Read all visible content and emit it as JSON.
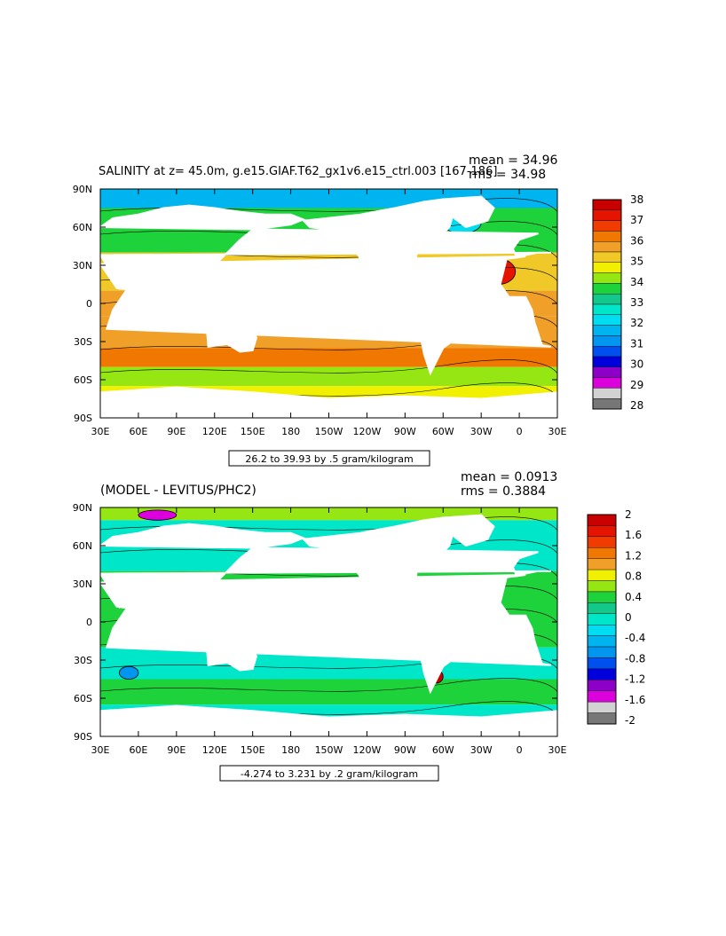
{
  "panels": [
    {
      "title": "SALINITY at z=  45.0m, g.e15.GIAF.T62_gx1v6.e15_ctrl.003 [167-186]",
      "stats": {
        "mean": "mean = 34.96",
        "rms": "rms = 34.98"
      },
      "range_label": "26.2 to 39.93 by .5 gram/kilogram",
      "colorbar": {
        "labels": [
          "38",
          "37",
          "36",
          "35",
          "34",
          "33",
          "32",
          "31",
          "30",
          "29",
          "28"
        ],
        "colors": [
          "#c80000",
          "#e41400",
          "#f03c00",
          "#f07800",
          "#f0a028",
          "#f0c828",
          "#f0f000",
          "#96e614",
          "#1ed23c",
          "#14c88c",
          "#00e6c8",
          "#00dcf0",
          "#00b4f0",
          "#0096f0",
          "#0050f0",
          "#0000dc",
          "#8c00c8",
          "#dc00dc",
          "#d2d2d2",
          "#777777"
        ]
      },
      "zones": [
        {
          "lat": [
            75,
            90
          ],
          "color": "#00b4f0"
        },
        {
          "lat": [
            40,
            75
          ],
          "color": "#1ed23c"
        },
        {
          "lat": [
            10,
            40
          ],
          "color": "#f0c828"
        },
        {
          "lat": [
            -10,
            10
          ],
          "color": "#f0a028"
        },
        {
          "lat": [
            -35,
            -10
          ],
          "color": "#f0a028"
        },
        {
          "lat": [
            -50,
            -35
          ],
          "color": "#f07800"
        },
        {
          "lat": [
            -65,
            -50
          ],
          "color": "#96e614"
        },
        {
          "lat": [
            -80,
            -65
          ],
          "color": "#f0f000"
        }
      ],
      "patches": [
        {
          "lon": [
            330,
            357
          ],
          "lat": [
            15,
            35
          ],
          "color": "#e41400"
        },
        {
          "lon": [
            315,
            340
          ],
          "lat": [
            -30,
            -5
          ],
          "color": "#e41400"
        },
        {
          "lon": [
            215,
            255
          ],
          "lat": [
            -25,
            -12
          ],
          "color": "#f03c00"
        },
        {
          "lon": [
            165,
            215
          ],
          "lat": [
            18,
            30
          ],
          "color": "#f07800"
        },
        {
          "lon": [
            55,
            70
          ],
          "lat": [
            15,
            25
          ],
          "color": "#f07800"
        },
        {
          "lon": [
            300,
            330
          ],
          "lat": [
            55,
            72
          ],
          "color": "#00dcf0"
        }
      ]
    },
    {
      "title": "(MODEL - LEVITUS/PHC2)",
      "stats": {
        "mean": "mean = 0.0913",
        "rms": "rms = 0.3884"
      },
      "range_label": "-4.274 to 3.231 by .2 gram/kilogram",
      "colorbar": {
        "labels": [
          "2",
          "1.6",
          "1.2",
          "0.8",
          "0.4",
          "0",
          "-0.4",
          "-0.8",
          "-1.2",
          "-1.6",
          "-2"
        ],
        "colors": [
          "#c80000",
          "#e41400",
          "#f03c00",
          "#f07800",
          "#f0a028",
          "#f0f000",
          "#96e614",
          "#1ed23c",
          "#14c88c",
          "#00e6c8",
          "#00dcf0",
          "#00b4f0",
          "#0096f0",
          "#0050f0",
          "#0000dc",
          "#8c00c8",
          "#dc00dc",
          "#d2d2d2",
          "#777777"
        ]
      },
      "zones": [
        {
          "lat": [
            80,
            90
          ],
          "color": "#96e614"
        },
        {
          "lat": [
            40,
            80
          ],
          "color": "#00e6c8"
        },
        {
          "lat": [
            -20,
            40
          ],
          "color": "#1ed23c"
        },
        {
          "lat": [
            -45,
            -20
          ],
          "color": "#00e6c8"
        },
        {
          "lat": [
            -65,
            -45
          ],
          "color": "#1ed23c"
        },
        {
          "lat": [
            -80,
            -65
          ],
          "color": "#00e6c8"
        }
      ],
      "patches": [
        {
          "lon": [
            165,
            215
          ],
          "lat": [
            18,
            28
          ],
          "color": "#f0f000"
        },
        {
          "lon": [
            315,
            345
          ],
          "lat": [
            40,
            55
          ],
          "color": "#0096f0"
        },
        {
          "lon": [
            335,
            350
          ],
          "lat": [
            45,
            52
          ],
          "color": "#dc00dc"
        },
        {
          "lon": [
            60,
            90
          ],
          "lat": [
            80,
            88
          ],
          "color": "#dc00dc"
        },
        {
          "lon": [
            340,
            358
          ],
          "lat": [
            -20,
            -5
          ],
          "color": "#f0a028"
        },
        {
          "lon": [
            290,
            300
          ],
          "lat": [
            -48,
            -38
          ],
          "color": "#c80000"
        },
        {
          "lon": [
            45,
            60
          ],
          "lat": [
            -45,
            -35
          ],
          "color": "#0096f0"
        }
      ]
    }
  ],
  "x_ticks": [
    "30E",
    "60E",
    "90E",
    "120E",
    "150E",
    "180",
    "150W",
    "120W",
    "90W",
    "60W",
    "30W",
    "0",
    "30E"
  ],
  "y_ticks": [
    "90N",
    "60N",
    "30N",
    "0",
    "30S",
    "60S",
    "90S"
  ],
  "land": [
    {
      "name": "north-america",
      "lon": [
        190,
        235,
        245,
        262,
        285,
        300,
        310,
        305,
        295,
        280,
        278,
        280,
        265,
        255,
        240,
        235,
        225,
        210,
        195,
        190
      ],
      "lat": [
        65,
        70,
        72,
        75,
        80,
        82,
        78,
        60,
        50,
        45,
        30,
        25,
        20,
        18,
        25,
        35,
        50,
        58,
        60,
        65
      ]
    },
    {
      "name": "greenland",
      "lon": [
        300,
        330,
        340,
        335,
        318,
        305
      ],
      "lat": [
        82,
        84,
        75,
        65,
        60,
        70
      ]
    },
    {
      "name": "south-america",
      "lon": [
        280,
        290,
        310,
        325,
        318,
        300,
        295,
        290,
        285,
        280
      ],
      "lat": [
        10,
        12,
        5,
        -7,
        -22,
        -35,
        -45,
        -55,
        -40,
        -15
      ]
    },
    {
      "name": "eurasia",
      "lon": [
        355,
        0,
        15,
        30,
        40,
        60,
        80,
        100,
        120,
        140,
        160,
        180,
        190,
        180,
        165,
        150,
        140,
        130,
        120,
        110,
        105,
        100,
        95,
        90,
        80,
        75,
        65,
        55,
        50,
        45,
        35,
        30,
        25,
        15,
        5,
        358
      ],
      "lat": [
        43,
        50,
        55,
        60,
        67,
        70,
        75,
        77,
        75,
        72,
        70,
        70,
        66,
        62,
        60,
        58,
        50,
        40,
        30,
        22,
        12,
        5,
        15,
        22,
        22,
        15,
        25,
        25,
        30,
        12,
        30,
        38,
        40,
        40,
        38,
        36
      ]
    },
    {
      "name": "africa",
      "lon": [
        350,
        5,
        30,
        43,
        51,
        40,
        35,
        25,
        18,
        12,
        10,
        5,
        352,
        345
      ],
      "lat": [
        35,
        37,
        31,
        12,
        11,
        -5,
        -20,
        -34,
        -33,
        -15,
        -5,
        5,
        5,
        15
      ]
    },
    {
      "name": "australia",
      "lon": [
        114,
        130,
        143,
        153,
        150,
        140,
        130,
        115
      ],
      "lat": [
        -22,
        -12,
        -11,
        -27,
        -37,
        -38,
        -32,
        -34
      ]
    },
    {
      "name": "antarctica",
      "lon": [
        30,
        90,
        150,
        210,
        270,
        330,
        390,
        390,
        30
      ],
      "lat": [
        -70,
        -66,
        -70,
        -75,
        -73,
        -75,
        -70,
        -90,
        -90
      ]
    },
    {
      "name": "indonesia",
      "lon": [
        95,
        105,
        115,
        130,
        140,
        150,
        140,
        120,
        105
      ],
      "lat": [
        5,
        -6,
        -8,
        -5,
        -3,
        -7,
        -9,
        -10,
        -6
      ]
    }
  ]
}
